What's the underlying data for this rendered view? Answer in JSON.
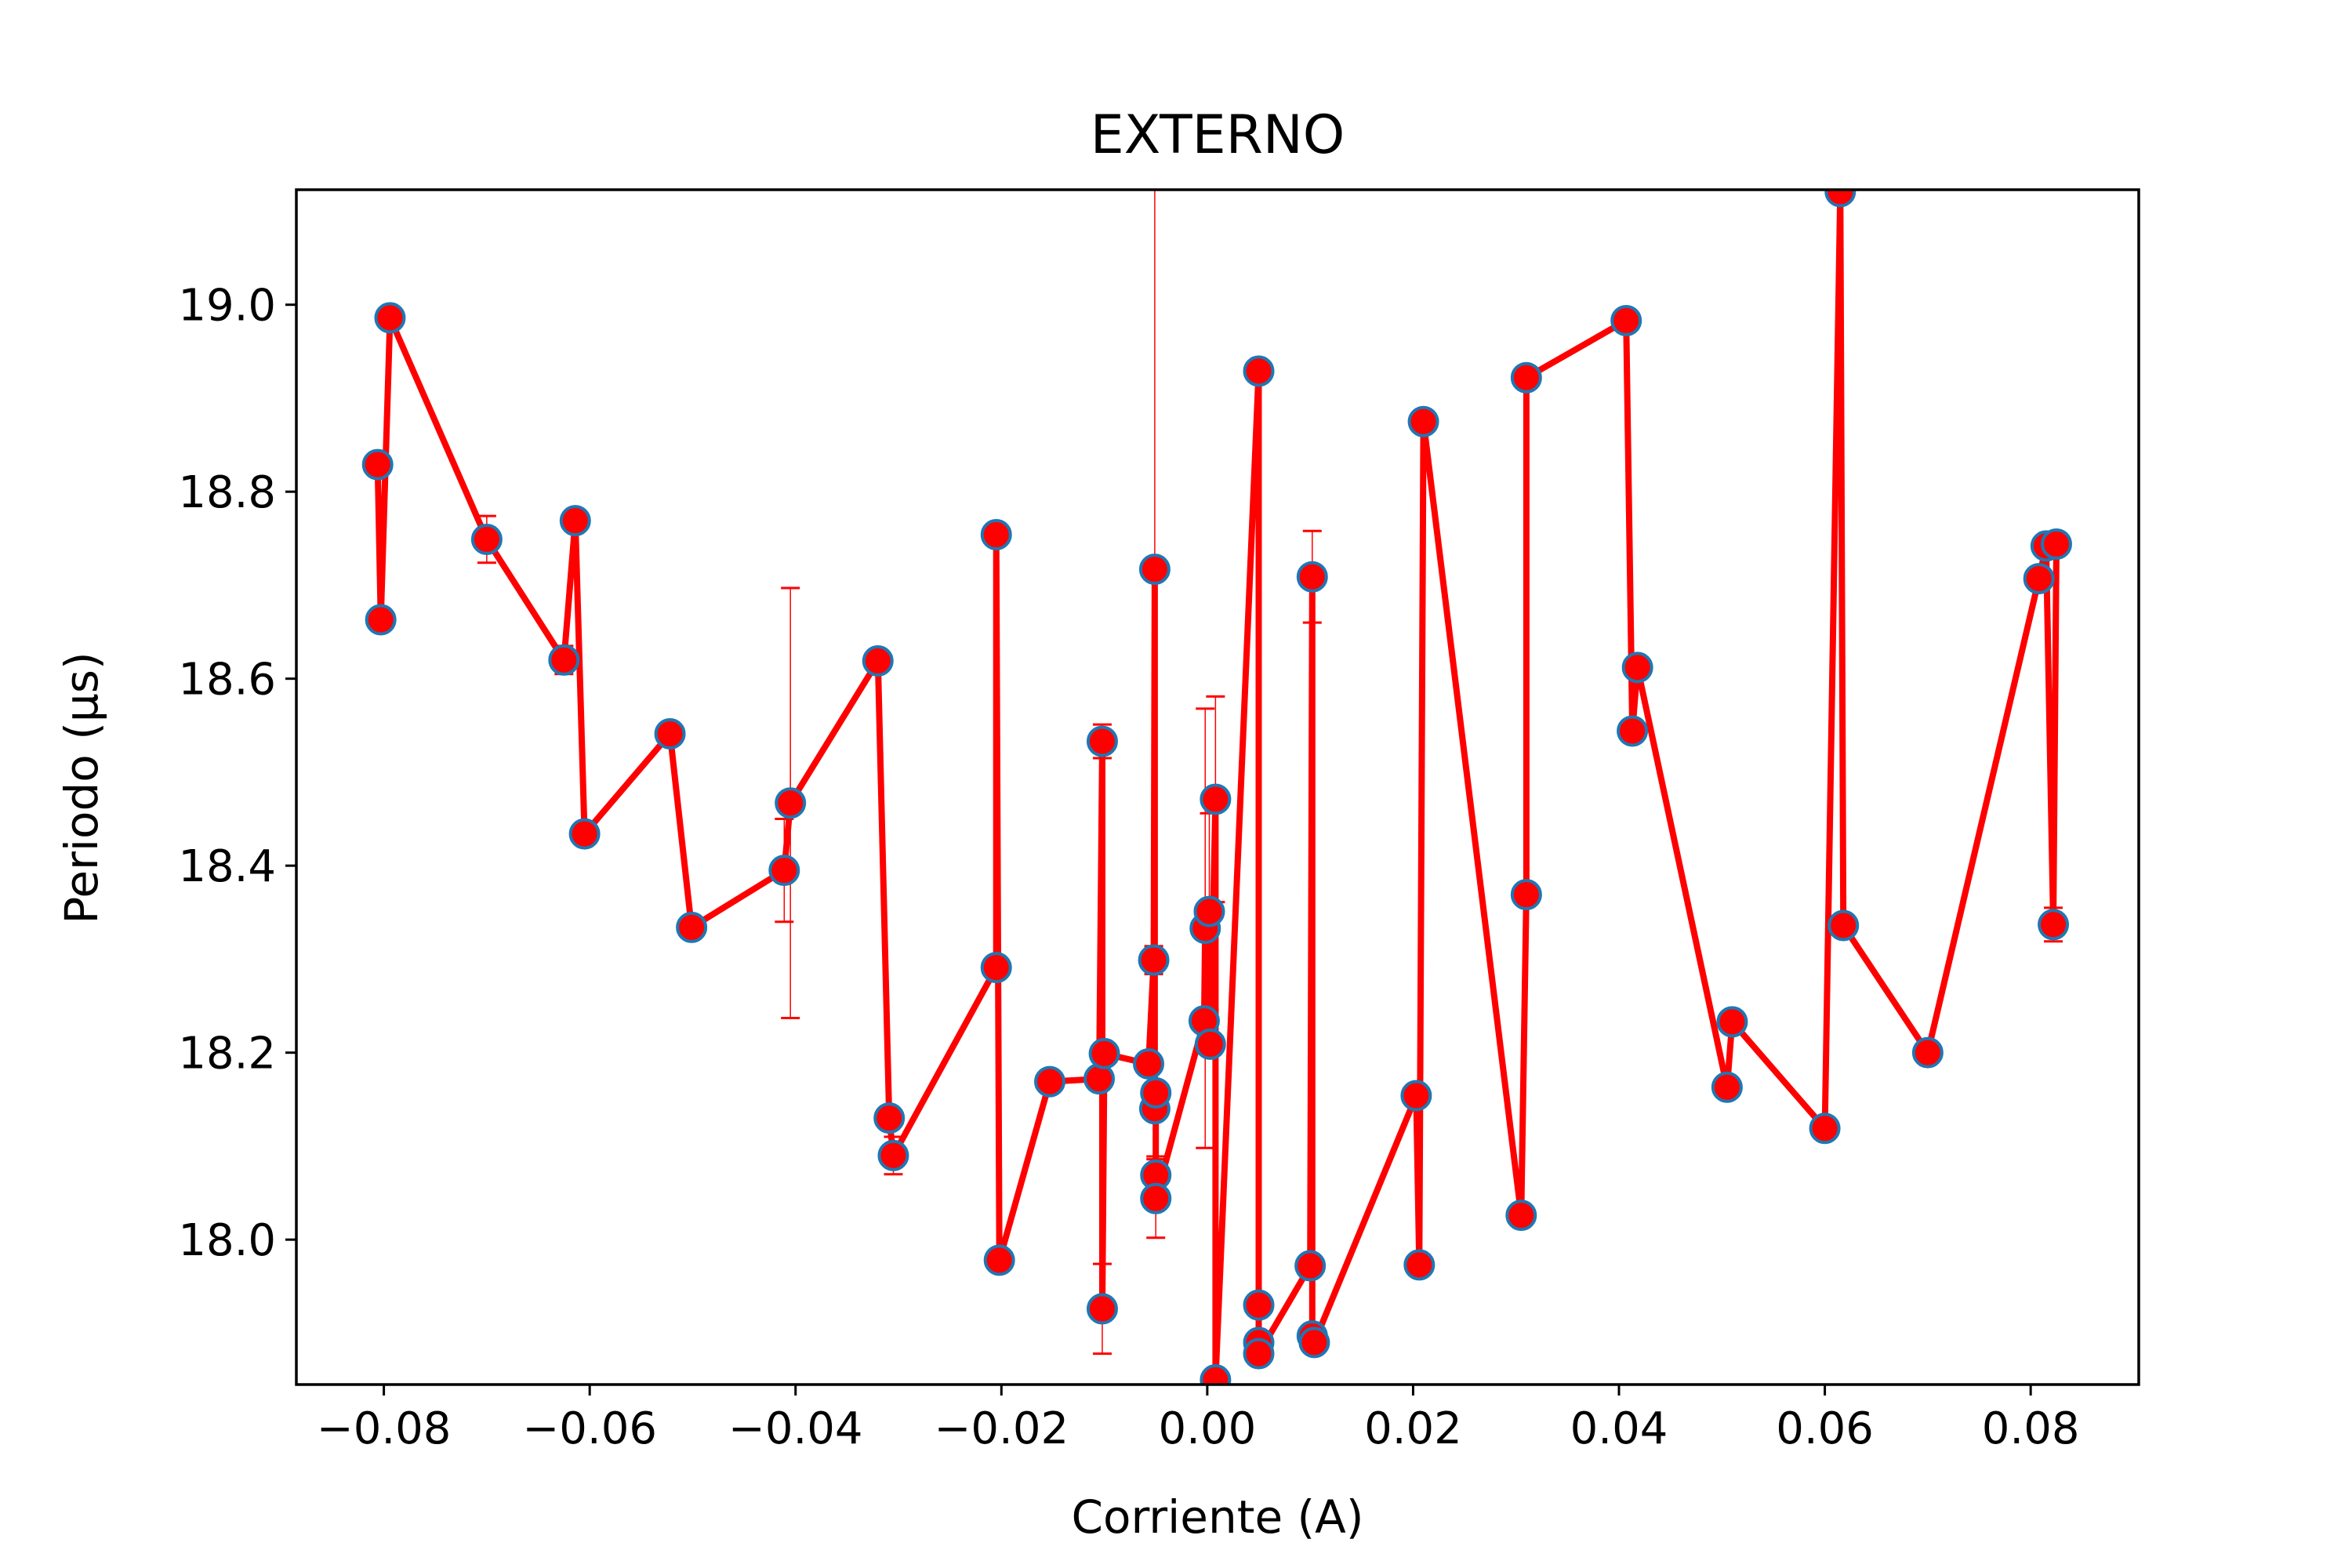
{
  "chart_data": {
    "type": "line",
    "title": "EXTERNO",
    "xlabel": "Corriente (A)",
    "ylabel": "Periodo (μs)",
    "xlim": [
      -0.0885,
      0.0905
    ],
    "ylim": [
      17.845,
      19.123
    ],
    "xticks": [
      -0.08,
      -0.06,
      -0.04,
      -0.02,
      0.0,
      0.02,
      0.04,
      0.06,
      0.08
    ],
    "xtick_labels": [
      "−0.08",
      "−0.06",
      "−0.04",
      "−0.02",
      "0.00",
      "0.02",
      "0.04",
      "0.06",
      "0.08"
    ],
    "yticks": [
      18.0,
      18.2,
      18.4,
      18.6,
      18.8,
      19.0
    ],
    "ytick_labels": [
      "18.0",
      "18.2",
      "18.4",
      "18.6",
      "18.8",
      "19.0"
    ],
    "grid": false,
    "line_color": "#ff0000",
    "marker_face": "#ff0000",
    "marker_edge": "#1f77b4",
    "errorbar_color": "#ff0000",
    "series": [
      {
        "points": [
          {
            "x": -0.0806,
            "y": 18.829,
            "err": 0.005
          },
          {
            "x": -0.0803,
            "y": 18.663,
            "err": 0.005
          },
          {
            "x": -0.0794,
            "y": 18.986,
            "err": 0.005
          },
          {
            "x": -0.07,
            "y": 18.749,
            "err": 0.025
          },
          {
            "x": -0.0625,
            "y": 18.62,
            "err": 0.015
          },
          {
            "x": -0.0614,
            "y": 18.769,
            "err": 0.006
          },
          {
            "x": -0.0605,
            "y": 18.434,
            "err": 0.005
          },
          {
            "x": -0.0522,
            "y": 18.541,
            "err": 0.006
          },
          {
            "x": -0.0501,
            "y": 18.334,
            "err": 0.005
          },
          {
            "x": -0.0411,
            "y": 18.395,
            "err": 0.055
          },
          {
            "x": -0.0405,
            "y": 18.467,
            "err": 0.23
          },
          {
            "x": -0.032,
            "y": 18.619,
            "err": 0.005
          },
          {
            "x": -0.0309,
            "y": 18.13,
            "err": 0.01
          },
          {
            "x": -0.0305,
            "y": 18.09,
            "err": 0.02
          },
          {
            "x": -0.0205,
            "y": 18.291,
            "err": 0.008
          },
          {
            "x": -0.0205,
            "y": 18.754,
            "err": 0.005
          },
          {
            "x": -0.0202,
            "y": 17.978,
            "err": 0.006
          },
          {
            "x": -0.0153,
            "y": 18.169,
            "err": 0.005
          },
          {
            "x": -0.0105,
            "y": 18.172,
            "err": 0.006
          },
          {
            "x": -0.0102,
            "y": 18.533,
            "err": 0.018
          },
          {
            "x": -0.0102,
            "y": 17.926,
            "err": 0.048
          },
          {
            "x": -0.01,
            "y": 18.199,
            "err": 0.01
          },
          {
            "x": -0.0057,
            "y": 18.188,
            "err": 0.008
          },
          {
            "x": -0.0052,
            "y": 18.299,
            "err": 0.015
          },
          {
            "x": -0.0051,
            "y": 18.717,
            "err": 0.41
          },
          {
            "x": -0.0051,
            "y": 18.14,
            "err": 0.01
          },
          {
            "x": -0.005,
            "y": 18.157,
            "err": 0.01
          },
          {
            "x": -0.005,
            "y": 18.069,
            "err": 0.02
          },
          {
            "x": -0.005,
            "y": 18.044,
            "err": 0.042
          },
          {
            "x": -0.0003,
            "y": 18.234,
            "err": 0.008
          },
          {
            "x": -0.0002,
            "y": 18.333,
            "err": 0.235
          },
          {
            "x": 0.0002,
            "y": 18.351,
            "err": 0.105
          },
          {
            "x": 0.0003,
            "y": 18.209,
            "err": 0.012
          },
          {
            "x": 0.0008,
            "y": 18.471,
            "err": 0.11
          },
          {
            "x": 0.0008,
            "y": 17.85,
            "err": 0.004
          },
          {
            "x": 0.005,
            "y": 18.929,
            "err": 0.004
          },
          {
            "x": 0.005,
            "y": 17.93,
            "err": 0.005
          },
          {
            "x": 0.005,
            "y": 17.89,
            "err": 0.005
          },
          {
            "x": 0.005,
            "y": 17.878,
            "err": 0.004
          },
          {
            "x": 0.01,
            "y": 17.972,
            "err": 0.004
          },
          {
            "x": 0.0102,
            "y": 18.709,
            "err": 0.049
          },
          {
            "x": 0.0102,
            "y": 17.897,
            "err": 0.004
          },
          {
            "x": 0.0104,
            "y": 17.89,
            "err": 0.004
          },
          {
            "x": 0.0203,
            "y": 18.154,
            "err": 0.005
          },
          {
            "x": 0.0206,
            "y": 17.973,
            "err": 0.004
          },
          {
            "x": 0.021,
            "y": 18.875,
            "err": 0.005
          },
          {
            "x": 0.0305,
            "y": 18.026,
            "err": 0.005
          },
          {
            "x": 0.031,
            "y": 18.369,
            "err": 0.005
          },
          {
            "x": 0.031,
            "y": 18.922,
            "err": 0.005
          },
          {
            "x": 0.0407,
            "y": 18.983,
            "err": 0.005
          },
          {
            "x": 0.0413,
            "y": 18.544,
            "err": 0.005
          },
          {
            "x": 0.0418,
            "y": 18.612,
            "err": 0.012
          },
          {
            "x": 0.0505,
            "y": 18.163,
            "err": 0.005
          },
          {
            "x": 0.051,
            "y": 18.233,
            "err": 0.005
          },
          {
            "x": 0.06,
            "y": 18.119,
            "err": 0.004
          },
          {
            "x": 0.0615,
            "y": 19.121,
            "err": 0.004
          },
          {
            "x": 0.0618,
            "y": 18.336,
            "err": 0.005
          },
          {
            "x": 0.07,
            "y": 18.2,
            "err": 0.004
          },
          {
            "x": 0.0808,
            "y": 18.707,
            "err": 0.005
          },
          {
            "x": 0.0815,
            "y": 18.742,
            "err": 0.005
          },
          {
            "x": 0.0822,
            "y": 18.337,
            "err": 0.018
          },
          {
            "x": 0.0825,
            "y": 18.744,
            "err": 0.005
          }
        ]
      }
    ]
  }
}
